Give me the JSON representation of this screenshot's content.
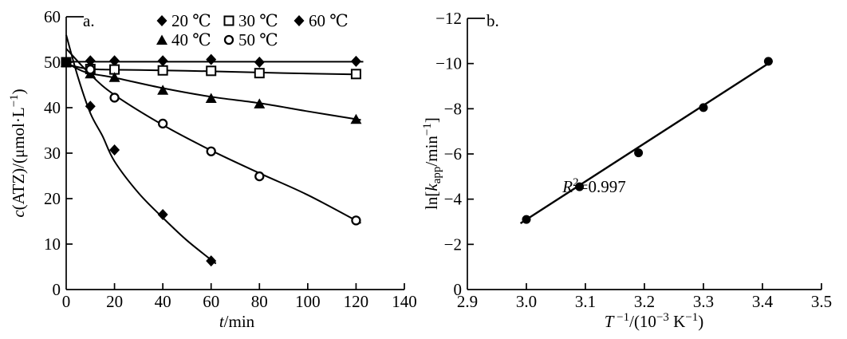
{
  "page": {
    "background": "#ffffff",
    "ink": "#000000"
  },
  "chart_data": [
    {
      "panel_label": "a.",
      "type": "scatter",
      "xlabel": "t/min",
      "xlabel_rich": [
        {
          "t": "t",
          "i": true
        },
        {
          "t": "/min"
        }
      ],
      "ylabel": "c(ATZ)/(μmol·L−1)",
      "ylabel_rich": [
        {
          "t": "c",
          "i": true
        },
        {
          "t": "(ATZ)/(μmol·L"
        },
        {
          "t": "−1",
          "sup": true
        },
        {
          "t": ")"
        }
      ],
      "xlim": [
        0,
        140
      ],
      "ylim": [
        0,
        60
      ],
      "xticks": [
        0,
        20,
        40,
        60,
        80,
        100,
        120,
        140
      ],
      "xtick_labels": [
        "0",
        "20",
        "40",
        "60",
        "80",
        "100",
        "120",
        "140"
      ],
      "yticks": [
        0,
        10,
        20,
        30,
        40,
        50,
        60
      ],
      "ytick_labels": [
        "0",
        "10",
        "20",
        "30",
        "40",
        "50",
        "60"
      ],
      "grid": false,
      "legend_position": "top-inside",
      "legend_rows": [
        [
          "20c",
          "30c",
          "60c"
        ],
        [
          "40c",
          "50c"
        ]
      ],
      "series": [
        {
          "id": "20c",
          "label": "20 ℃",
          "marker": "diamond-filled",
          "x": [
            0,
            10,
            20,
            40,
            60,
            80,
            120
          ],
          "y": [
            50,
            50.3,
            50.3,
            50.3,
            50.6,
            50.0,
            50.2
          ],
          "fit_x": [
            0,
            123
          ],
          "fit_y": [
            50.1,
            50.1
          ]
        },
        {
          "id": "30c",
          "label": "30 ℃",
          "marker": "square-open",
          "x": [
            0,
            10,
            20,
            40,
            60,
            80,
            120
          ],
          "y": [
            50,
            48.5,
            48.4,
            48.2,
            48.1,
            47.6,
            47.4
          ],
          "fit_x": [
            0,
            10,
            30,
            60,
            90,
            122
          ],
          "fit_y": [
            49.6,
            48.5,
            48.3,
            48.0,
            47.6,
            47.3
          ]
        },
        {
          "id": "40c",
          "label": "40 ℃",
          "marker": "triangle-filled",
          "x": [
            0,
            10,
            20,
            40,
            60,
            80,
            120
          ],
          "y": [
            50,
            47.5,
            46.7,
            43.9,
            42.1,
            40.9,
            37.5
          ],
          "fit_x": [
            0,
            8,
            20,
            40,
            60,
            80,
            100,
            122
          ],
          "fit_y": [
            49.9,
            47.8,
            46.6,
            44.3,
            42.4,
            41.0,
            39.2,
            37.3
          ]
        },
        {
          "id": "50c",
          "label": "50 ℃",
          "marker": "circle-open",
          "x": [
            0,
            10,
            20,
            40,
            60,
            80,
            120
          ],
          "y": [
            50,
            48.4,
            42.2,
            36.5,
            30.4,
            24.9,
            15.2
          ],
          "fit_x": [
            0,
            10,
            20,
            40,
            60,
            80,
            100,
            122
          ],
          "fit_y": [
            53,
            47.3,
            42.8,
            36.2,
            30.6,
            25.6,
            20.8,
            14.6
          ]
        },
        {
          "id": "60c",
          "label": "60 ℃",
          "marker": "diamond-filled",
          "x": [
            0,
            10,
            20,
            40,
            60
          ],
          "y": [
            50,
            40.3,
            30.7,
            16.5,
            6.3
          ],
          "fit_x": [
            0,
            5,
            10,
            15,
            20,
            30,
            40,
            50,
            62
          ],
          "fit_y": [
            56,
            46.5,
            38.8,
            33.8,
            28.2,
            21.2,
            15.8,
            10.8,
            5.7
          ]
        }
      ]
    },
    {
      "panel_label": "b.",
      "type": "scatter",
      "xlabel": "T −1/(10−3 K−1)",
      "xlabel_rich": [
        {
          "t": "T",
          "i": true
        },
        {
          "t": " −1",
          "sup": true
        },
        {
          "t": "/(10"
        },
        {
          "t": "−3",
          "sup": true
        },
        {
          "t": " K"
        },
        {
          "t": "−1",
          "sup": true
        },
        {
          "t": ")"
        }
      ],
      "ylabel": "ln[kapp/min−1]",
      "ylabel_rich": [
        {
          "t": "ln["
        },
        {
          "t": "k",
          "i": true
        },
        {
          "t": "app",
          "sub": true
        },
        {
          "t": "/min"
        },
        {
          "t": "−1",
          "sup": true
        },
        {
          "t": "]"
        }
      ],
      "xlim": [
        2.9,
        3.5
      ],
      "ylim": [
        0,
        -12
      ],
      "xticks": [
        2.9,
        3.0,
        3.1,
        3.2,
        3.3,
        3.4,
        3.5
      ],
      "xtick_labels": [
        "2.9",
        "3.0",
        "3.1",
        "3.2",
        "3.3",
        "3.4",
        "3.5"
      ],
      "yticks": [
        0,
        -2,
        -4,
        -6,
        -8,
        -10,
        -12
      ],
      "ytick_labels": [
        "0",
        "−2",
        "−4",
        "−6",
        "−8",
        "−10",
        "−12"
      ],
      "grid": false,
      "points_marker": "circle-filled",
      "points_x": [
        3.0,
        3.09,
        3.19,
        3.3,
        3.41
      ],
      "points_y": [
        -3.1,
        -4.55,
        -6.05,
        -8.05,
        -10.1
      ],
      "fit_x": [
        2.99,
        3.417
      ],
      "fit_y": [
        -2.93,
        -10.12
      ],
      "annotation": "R2=0.997",
      "annotation_rich": [
        {
          "t": "R",
          "i": true
        },
        {
          "t": "2",
          "sup": true
        },
        {
          "t": "=0.997"
        }
      ]
    }
  ]
}
